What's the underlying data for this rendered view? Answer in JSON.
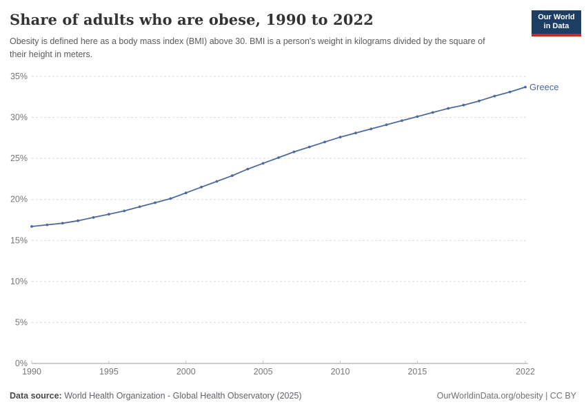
{
  "header": {
    "title": "Share of adults who are obese, 1990 to 2022",
    "subtitle": "Obesity is defined here as a body mass index (BMI) above 30. BMI is a person's weight in kilograms divided by the square of their height in meters.",
    "logo": {
      "line1": "Our World",
      "line2": "in Data",
      "bg_color": "#1d3d63",
      "accent_color": "#cb2a22"
    }
  },
  "chart_data": {
    "type": "line",
    "title": "Share of adults who are obese, 1990 to 2022",
    "xlabel": "",
    "ylabel": "",
    "x": [
      1990,
      1991,
      1992,
      1993,
      1994,
      1995,
      1996,
      1997,
      1998,
      1999,
      2000,
      2001,
      2002,
      2003,
      2004,
      2005,
      2006,
      2007,
      2008,
      2009,
      2010,
      2011,
      2012,
      2013,
      2014,
      2015,
      2016,
      2017,
      2018,
      2019,
      2020,
      2021,
      2022
    ],
    "series": [
      {
        "name": "Greece",
        "color": "#4c6a9c",
        "values": [
          16.7,
          16.9,
          17.1,
          17.4,
          17.8,
          18.2,
          18.6,
          19.1,
          19.6,
          20.1,
          20.8,
          21.5,
          22.2,
          22.9,
          23.7,
          24.4,
          25.1,
          25.8,
          26.4,
          27.0,
          27.6,
          28.1,
          28.6,
          29.1,
          29.6,
          30.1,
          30.6,
          31.1,
          31.5,
          32.0,
          32.6,
          33.1,
          33.7
        ]
      }
    ],
    "end_label": "Greece",
    "xlim": [
      1990,
      2022
    ],
    "ylim": [
      0,
      35
    ],
    "x_ticks": [
      1990,
      1995,
      2000,
      2005,
      2010,
      2015,
      2022
    ],
    "y_ticks": [
      0,
      5,
      10,
      15,
      20,
      25,
      30,
      35
    ],
    "y_tick_suffix": "%",
    "grid": "horizontal-dashed",
    "legend_position": "end-of-line",
    "colors": {
      "gridline": "#d9d9d9",
      "axis_line": "#999999",
      "tick_mark": "#c0c0c0",
      "tick_label": "#767676"
    }
  },
  "footer": {
    "datasource_label": "Data source:",
    "datasource_value": " World Health Organization - Global Health Observatory (2025)",
    "attribution": "OurWorldinData.org/obesity | CC BY"
  }
}
